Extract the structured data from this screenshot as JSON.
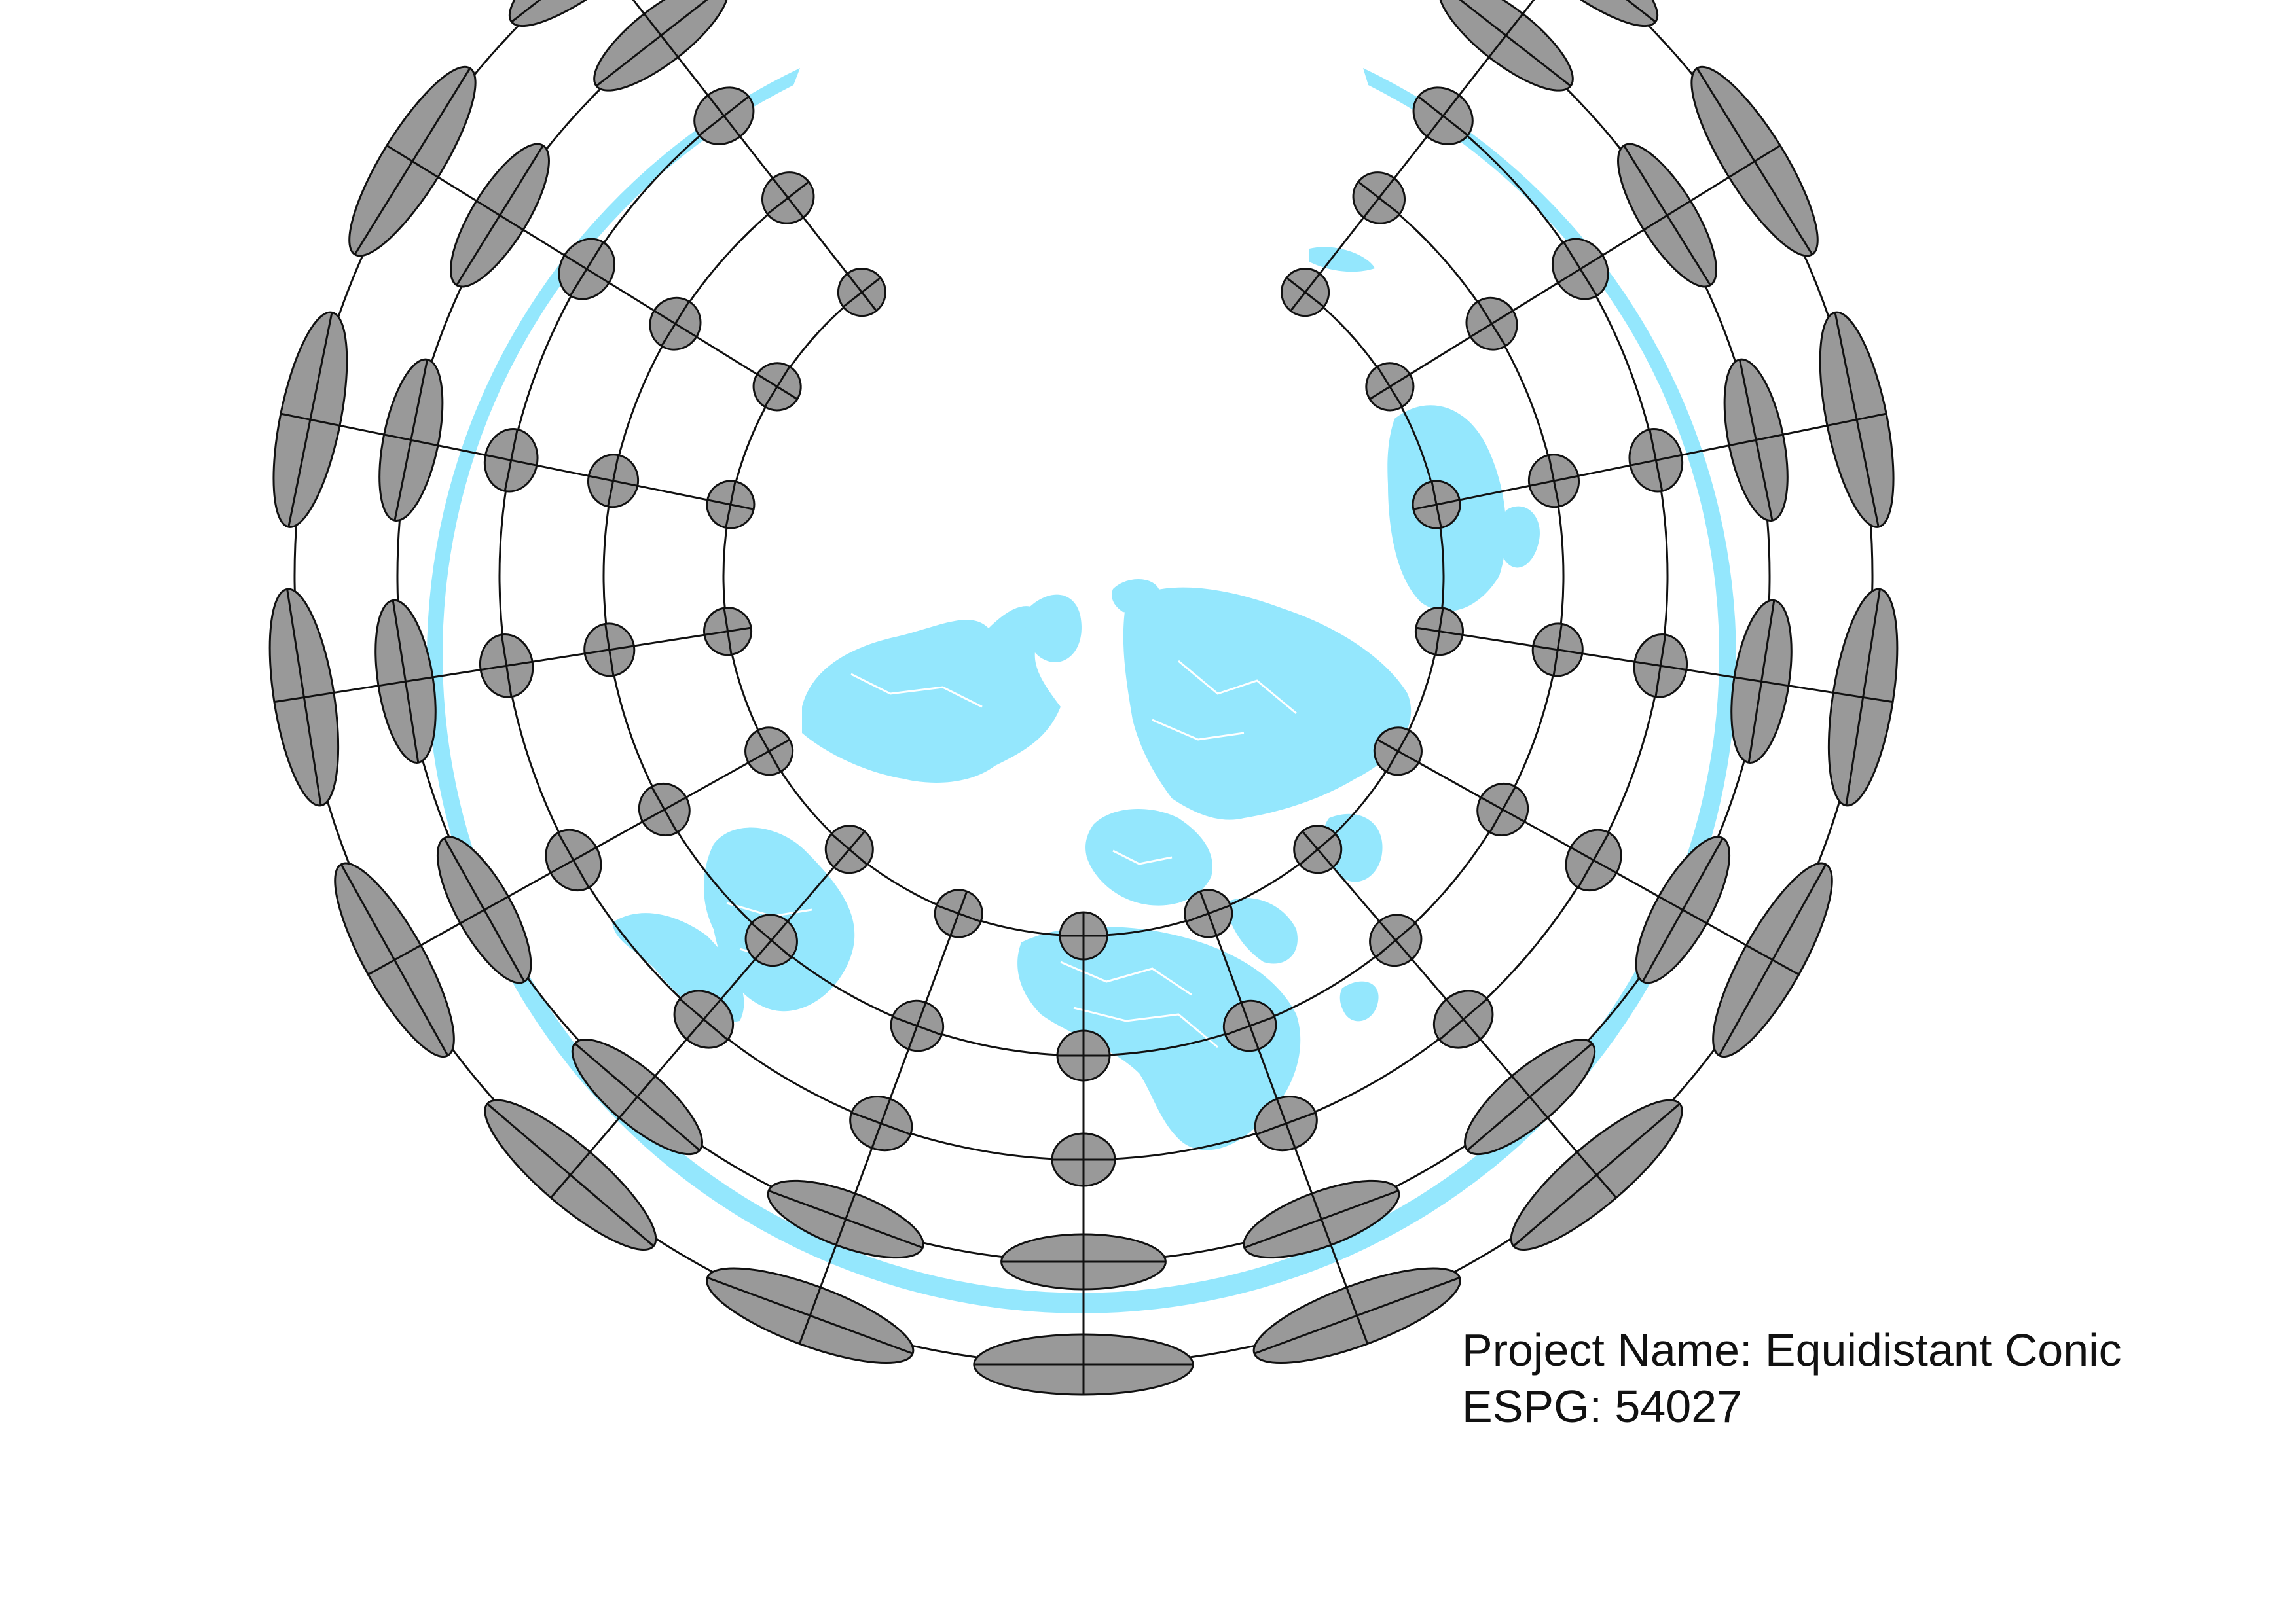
{
  "map": {
    "projection": "equidistant-conic",
    "ocean_color": "#94e7fd",
    "land_color": "#94e7fd",
    "border_color": "#ffffff",
    "indicatrix_fill": "#999999",
    "indicatrix_stroke": "#111111",
    "graticule_color": "#111111",
    "background": "#ffffff"
  },
  "labels": {
    "project_name": "Project Name: Equidistant Conic",
    "epsg": "ESPG: 54027"
  }
}
